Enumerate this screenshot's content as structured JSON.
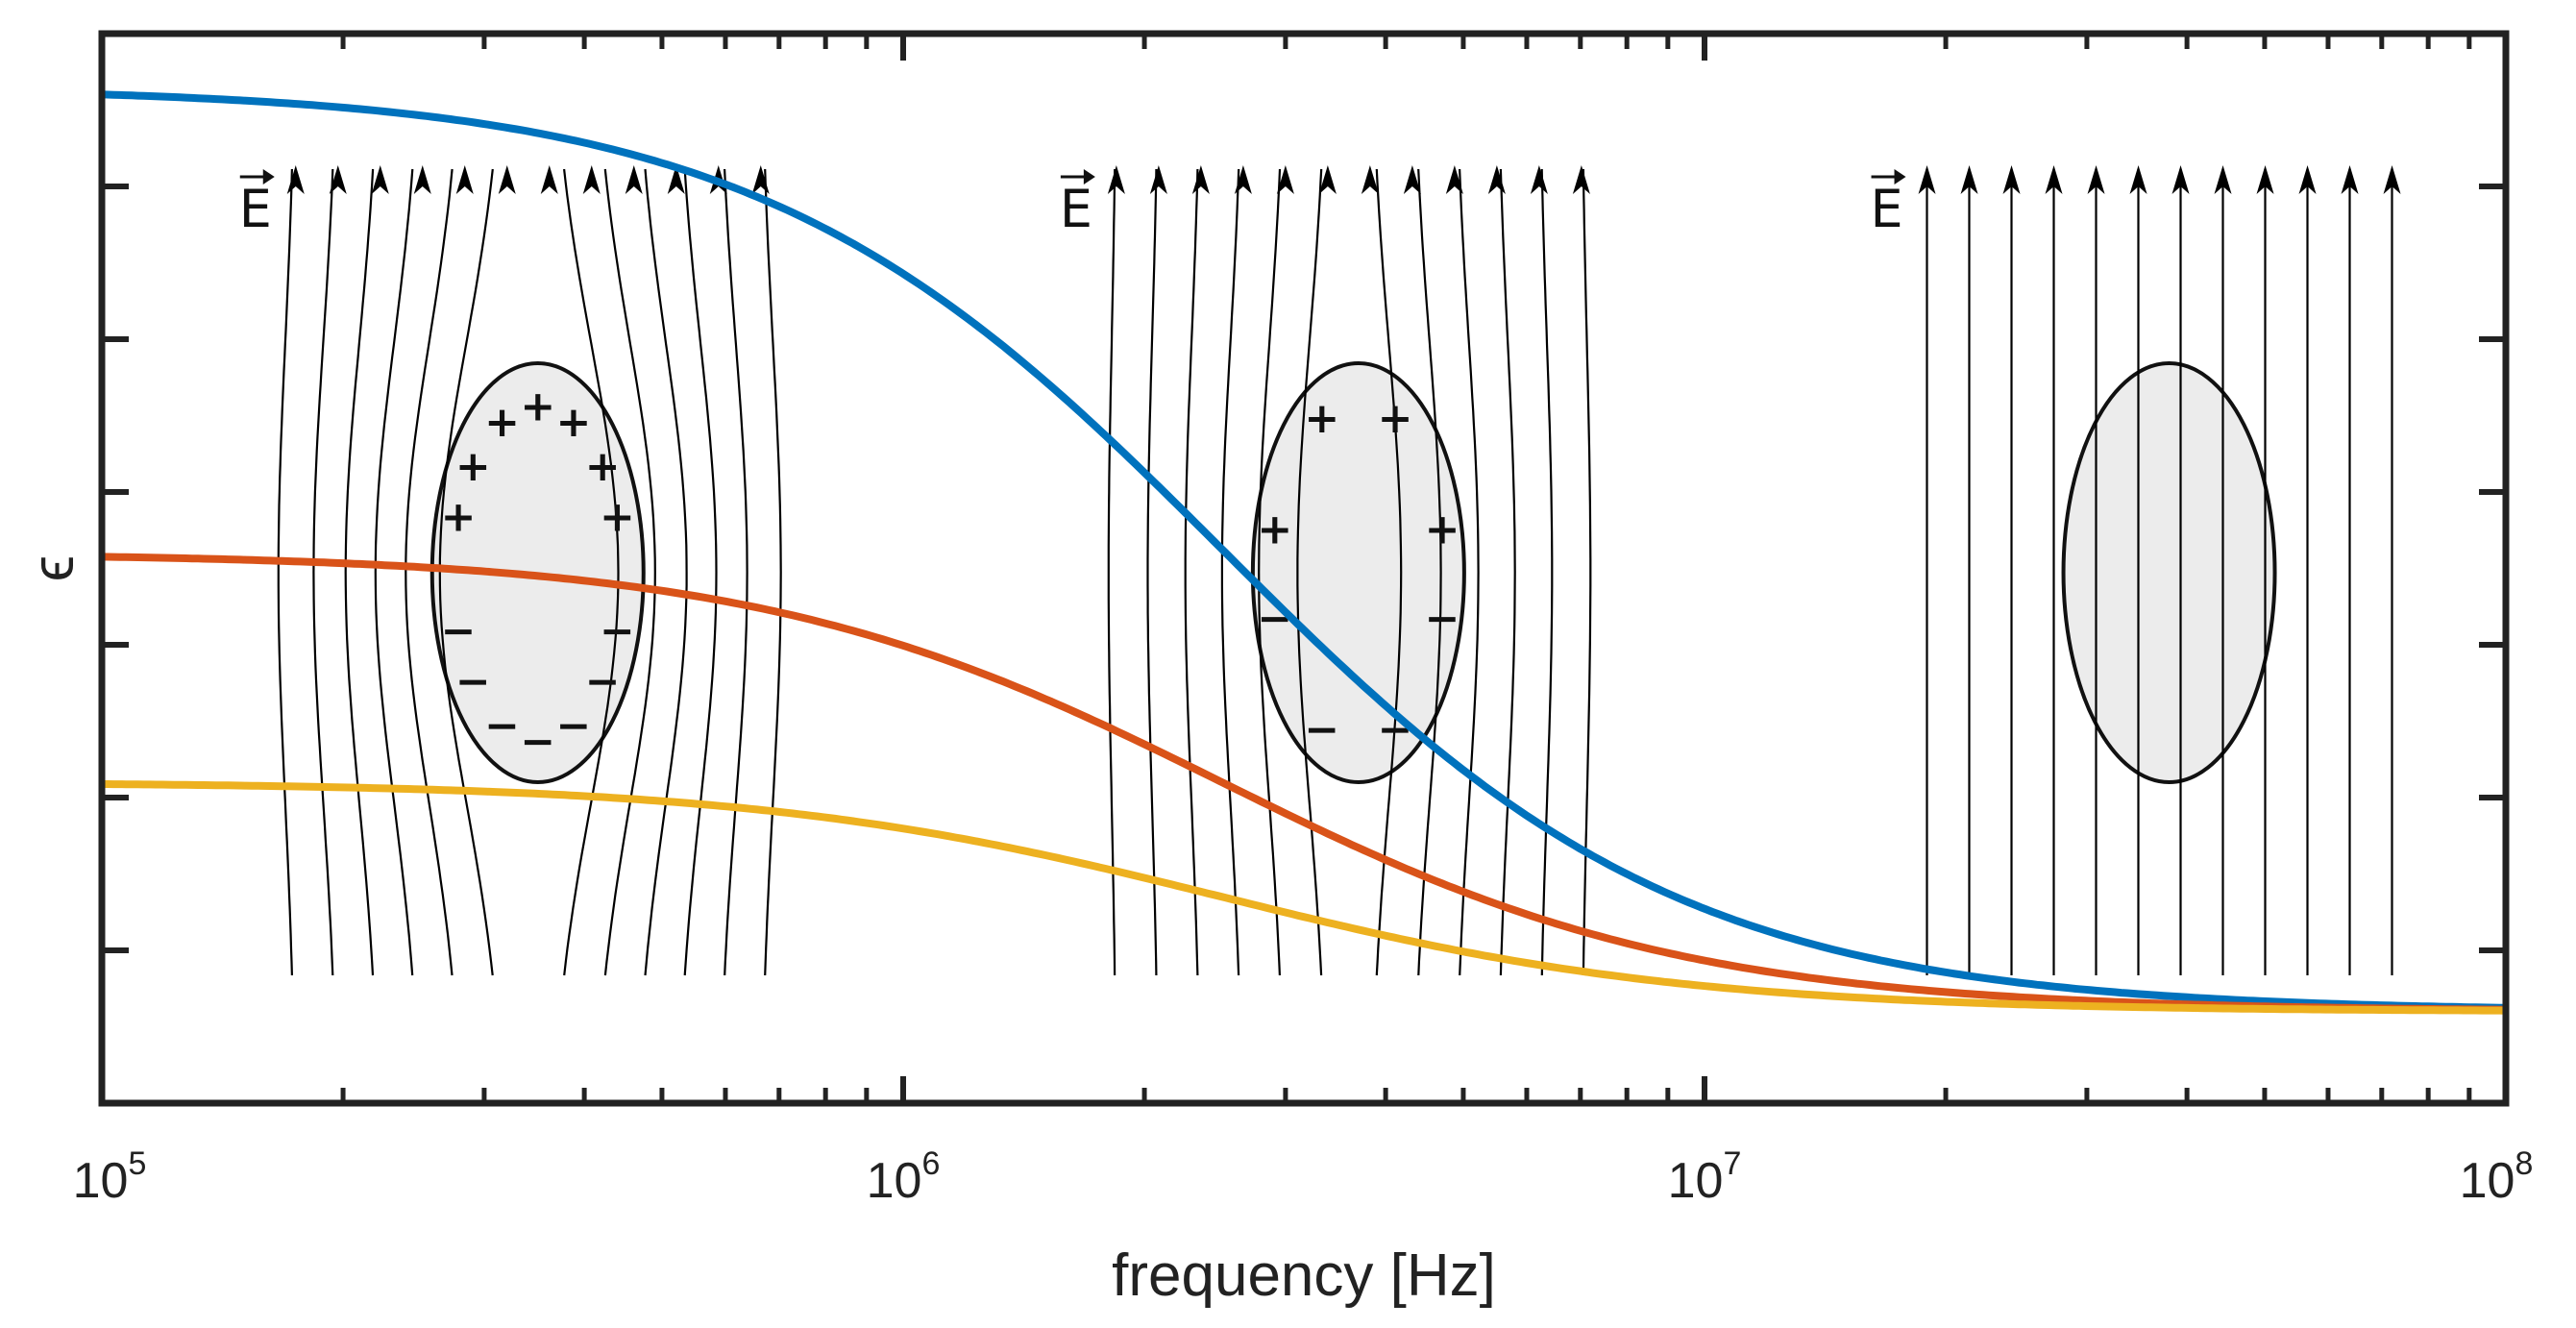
{
  "chart_data": {
    "type": "line",
    "title": "",
    "xscale": "log",
    "xlim": [
      100000,
      100000000
    ],
    "ylim": [
      0,
      7
    ],
    "xlabel": "frequency [Hz]",
    "ylabel": "ϵ",
    "x_ticks": [
      {
        "base": "10",
        "exp": "5",
        "value": 100000
      },
      {
        "base": "10",
        "exp": "6",
        "value": 1000000
      },
      {
        "base": "10",
        "exp": "7",
        "value": 10000000
      },
      {
        "base": "10",
        "exp": "8",
        "value": 100000000
      }
    ],
    "y_tick_values": [
      1,
      2,
      3,
      4,
      5,
      6
    ],
    "y_tick_labels_shown": false,
    "grid": false,
    "series": [
      {
        "name": "blue",
        "color": "#0072BD",
        "high": 6.65,
        "low": 0.6,
        "fc": 2500000,
        "order": 1.5
      },
      {
        "name": "orange",
        "color": "#D95319",
        "high": 3.6,
        "low": 0.6,
        "fc": 2500000,
        "order": 1.5
      },
      {
        "name": "yellow",
        "color": "#EDB120",
        "high": 2.1,
        "low": 0.6,
        "fc": 2500000,
        "order": 1.5
      }
    ],
    "annotations": [
      {
        "type": "field-lines",
        "label": "E",
        "x_center": 350000,
        "distortion": "strong",
        "charges": "surface",
        "description": "field lines bend around particle"
      },
      {
        "type": "field-lines",
        "label": "E",
        "x_center": 3700000,
        "distortion": "weak",
        "charges": "partial",
        "description": "field lines slightly bend"
      },
      {
        "type": "field-lines",
        "label": "E",
        "x_center": 38000000,
        "distortion": "none",
        "charges": "none",
        "description": "field lines straight through particle"
      }
    ],
    "charge_symbols": {
      "positive": "+",
      "negative": "−"
    }
  },
  "colors": {
    "axis": "#222222",
    "particle_fill": "#ececec",
    "particle_stroke": "#111111",
    "field_line": "#000000"
  }
}
